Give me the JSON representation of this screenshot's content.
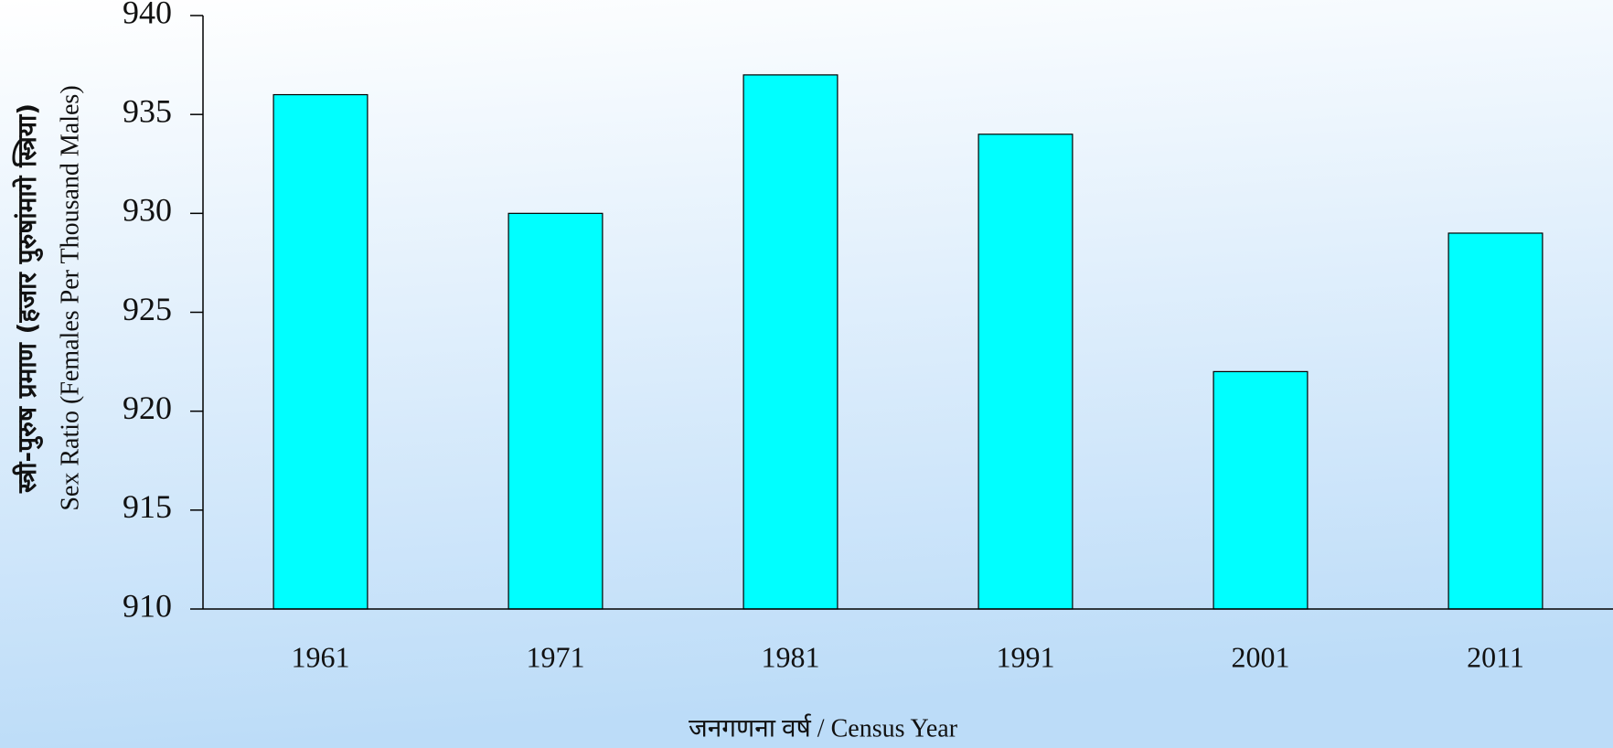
{
  "chart_data": {
    "type": "bar",
    "ylabel": [
      "स्त्री-पुरुष प्रमाण (हजार पुरुषांमागे स्त्रिया)",
      "Sex Ratio (Females Per Thousand Males)"
    ],
    "xlabel": "जनगणना वर्ष / Census Year",
    "categories": [
      "1961",
      "1971",
      "1981",
      "1991",
      "2001",
      "2011"
    ],
    "values": [
      936,
      930,
      937,
      934,
      922,
      929
    ],
    "color": "#00ffff",
    "ylim": [
      910,
      940
    ],
    "yticks": [
      910,
      915,
      920,
      925,
      930,
      935,
      940
    ],
    "grid": false
  }
}
